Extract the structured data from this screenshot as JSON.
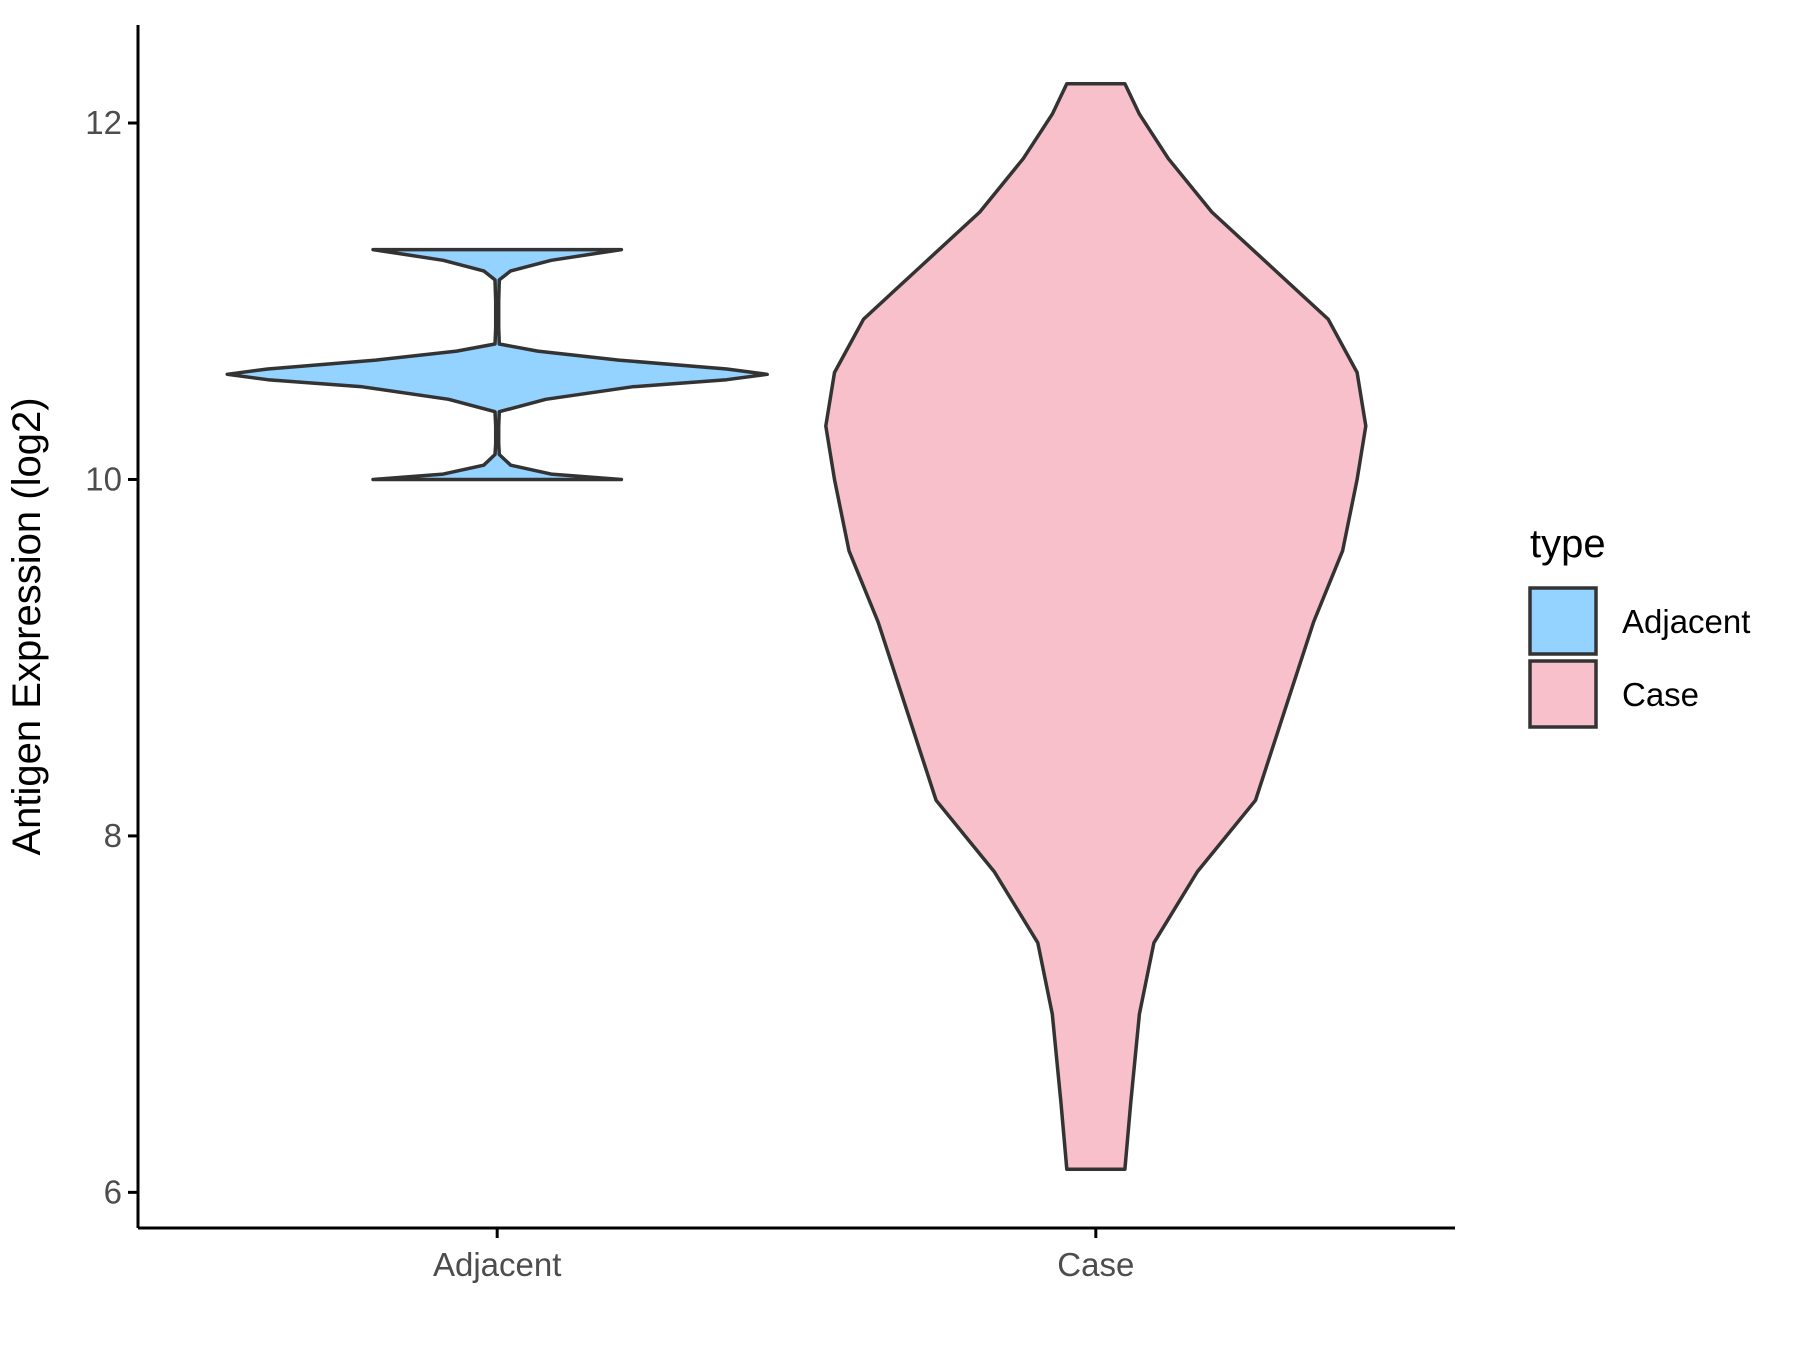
{
  "chart_data": {
    "type": "violin",
    "title": "",
    "xlabel": "",
    "ylabel": "Antigen Expression (log2)",
    "ylim": [
      5.8,
      12.55
    ],
    "yticks": [
      6,
      8,
      10,
      12
    ],
    "categories": [
      "Adjacent",
      "Case"
    ],
    "grid": false,
    "legend": {
      "title": "type",
      "position": "right",
      "entries": [
        {
          "label": "Adjacent",
          "color": "#94D2FF"
        },
        {
          "label": "Case",
          "color": "#F7C0CB"
        }
      ]
    },
    "series": [
      {
        "name": "Adjacent",
        "color": "#94D2FF",
        "min": 10.0,
        "max": 11.29,
        "density_profile": [
          [
            10.0,
            0.46
          ],
          [
            10.03,
            0.2
          ],
          [
            10.08,
            0.05
          ],
          [
            10.14,
            0.008
          ],
          [
            10.2,
            0.005
          ],
          [
            10.3,
            0.005
          ],
          [
            10.38,
            0.008
          ],
          [
            10.45,
            0.18
          ],
          [
            10.52,
            0.5
          ],
          [
            10.56,
            0.85
          ],
          [
            10.59,
            1.0
          ],
          [
            10.62,
            0.85
          ],
          [
            10.67,
            0.45
          ],
          [
            10.72,
            0.15
          ],
          [
            10.76,
            0.008
          ],
          [
            10.85,
            0.005
          ],
          [
            11.0,
            0.005
          ],
          [
            11.12,
            0.008
          ],
          [
            11.17,
            0.05
          ],
          [
            11.23,
            0.2
          ],
          [
            11.29,
            0.46
          ]
        ]
      },
      {
        "name": "Case",
        "color": "#F7C0CB",
        "min": 6.13,
        "max": 12.22,
        "density_profile": [
          [
            6.13,
            0.01
          ],
          [
            6.5,
            0.012
          ],
          [
            7.0,
            0.015
          ],
          [
            7.4,
            0.02
          ],
          [
            7.8,
            0.035
          ],
          [
            8.2,
            0.055
          ],
          [
            8.7,
            0.065
          ],
          [
            9.2,
            0.075
          ],
          [
            9.6,
            0.085
          ],
          [
            10.0,
            0.09
          ],
          [
            10.3,
            0.093
          ],
          [
            10.6,
            0.09
          ],
          [
            10.9,
            0.08
          ],
          [
            11.2,
            0.06
          ],
          [
            11.5,
            0.04
          ],
          [
            11.8,
            0.025
          ],
          [
            12.05,
            0.015
          ],
          [
            12.22,
            0.01
          ]
        ]
      }
    ]
  }
}
